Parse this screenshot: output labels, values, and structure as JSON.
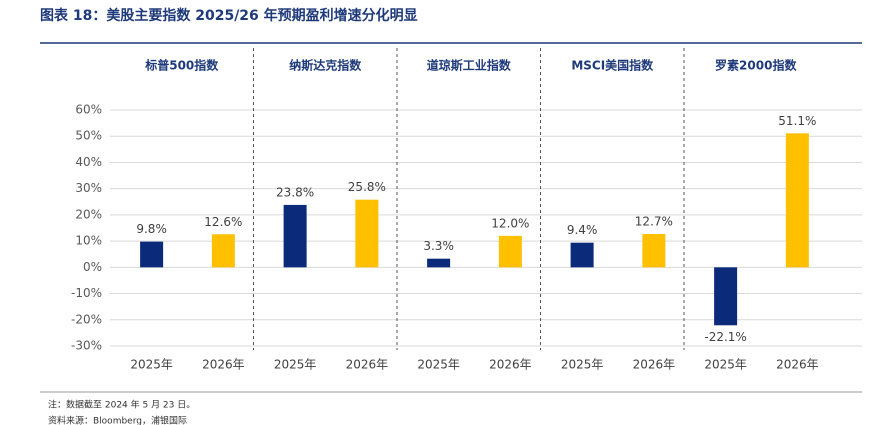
{
  "chart_data": {
    "type": "bar",
    "title": "图表 18：美股主要指数 2025/26 年预期盈利增速分化明显",
    "colors": [
      "#0b2a7a",
      "#ffc000"
    ],
    "ylim": [
      -30,
      60
    ],
    "yticks": [
      {
        "value": -30,
        "label": "-30%"
      },
      {
        "value": -20,
        "label": "-20%"
      },
      {
        "value": -10,
        "label": "-10%"
      },
      {
        "value": 0,
        "label": "0%"
      },
      {
        "value": 10,
        "label": "10%"
      },
      {
        "value": 20,
        "label": "20%"
      },
      {
        "value": 30,
        "label": "30%"
      },
      {
        "value": 40,
        "label": "40%"
      },
      {
        "value": 50,
        "label": "50%"
      },
      {
        "value": 60,
        "label": "60%"
      }
    ],
    "grid": true,
    "panels": [
      {
        "name": "标普500指数",
        "categories": [
          "2025年",
          "2026年"
        ],
        "values": [
          9.8,
          12.6
        ],
        "value_labels": [
          "9.8%",
          "12.6%"
        ]
      },
      {
        "name": "纳斯达克指数",
        "categories": [
          "2025年",
          "2026年"
        ],
        "values": [
          23.8,
          25.8
        ],
        "value_labels": [
          "23.8%",
          "25.8%"
        ]
      },
      {
        "name": "道琼斯工业指数",
        "categories": [
          "2025年",
          "2026年"
        ],
        "values": [
          3.3,
          12.0
        ],
        "value_labels": [
          "3.3%",
          "12.0%"
        ]
      },
      {
        "name": "MSCI美国指数",
        "categories": [
          "2025年",
          "2026年"
        ],
        "values": [
          9.4,
          12.7
        ],
        "value_labels": [
          "9.4%",
          "12.7%"
        ]
      },
      {
        "name": "罗素2000指数",
        "categories": [
          "2025年",
          "2026年"
        ],
        "values": [
          -22.1,
          51.1
        ],
        "value_labels": [
          "-22.1%",
          "51.1%"
        ]
      }
    ],
    "notes": [
      "注：数据截至 2024 年 5 月 23 日。",
      "资料来源：Bloomberg，浦银国际"
    ]
  }
}
